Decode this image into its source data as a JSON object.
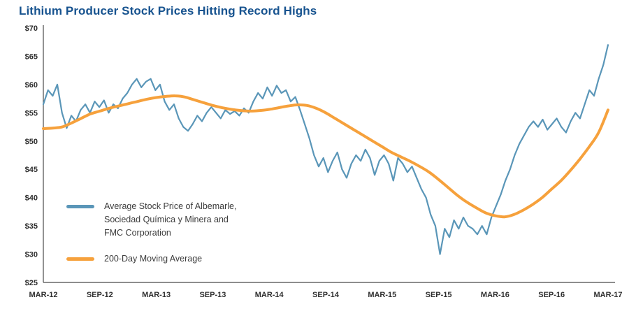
{
  "title": "Lithium Producer Stock Prices Hitting Record Highs",
  "colors": {
    "title_blue": "#17538f",
    "stock_line_blue": "#5a96b8",
    "moving_average_orange": "#f6a13c",
    "axis_text": "#2e2e2e"
  },
  "chart_data": {
    "type": "line",
    "title": "Lithium Producer Stock Prices Hitting Record Highs",
    "xlabel": "",
    "ylabel": "",
    "ylim": [
      25,
      70
    ],
    "y_tick_step": 5,
    "grid": false,
    "legend_position": "inside-bottom-left",
    "x_tick_labels": [
      "MAR-12",
      "SEP-12",
      "MAR-13",
      "SEP-13",
      "MAR-14",
      "SEP-14",
      "MAR-15",
      "SEP-15",
      "MAR-16",
      "SEP-16",
      "MAR-17"
    ],
    "y_tick_labels": [
      "$25",
      "$30",
      "$35",
      "$40",
      "$45",
      "$50",
      "$55",
      "$60",
      "$65",
      "$70"
    ],
    "x_range_note": "evenly spaced from MAR-2012 to MAR-2017",
    "series": [
      {
        "name": "Average Stock Price of Albemarle, Sociedad Química y Minera and FMC Corporation",
        "color": "#5a96b8",
        "stroke_width": 2.2,
        "sampling": "semi-monthly",
        "smooth": false,
        "values": [
          56.5,
          59,
          58,
          60,
          55,
          52.3,
          54.5,
          53.5,
          55.5,
          56.5,
          55,
          57,
          56,
          57.2,
          55,
          56.5,
          55.8,
          57.5,
          58.5,
          60,
          61,
          59.5,
          60.5,
          61,
          59,
          60,
          57,
          55.5,
          56.5,
          54,
          52.5,
          51.8,
          53,
          54.5,
          53.5,
          55,
          56,
          55,
          54,
          55.5,
          54.8,
          55.3,
          54.5,
          55.8,
          55,
          57,
          58.5,
          57.5,
          59.5,
          58,
          59.8,
          58.5,
          59,
          57,
          57.8,
          55.5,
          53,
          50.5,
          47.5,
          45.5,
          47,
          44.5,
          46.5,
          48,
          45,
          43.5,
          46,
          47.5,
          46.5,
          48.5,
          47,
          44,
          46.5,
          47.5,
          46,
          43,
          47,
          46,
          44.5,
          45.5,
          43.5,
          41.5,
          40,
          37,
          35,
          30,
          34.5,
          33,
          36,
          34.5,
          36.5,
          35,
          34.5,
          33.5,
          35,
          33.5,
          36.5,
          38.5,
          40.5,
          43,
          45,
          47.5,
          49.5,
          51,
          52.5,
          53.5,
          52.5,
          53.8,
          52,
          53,
          54,
          52.5,
          51.5,
          53.5,
          55,
          54,
          56.5,
          59,
          58,
          61,
          63.5,
          67
        ]
      },
      {
        "name": "200-Day Moving Average",
        "color": "#f6a13c",
        "stroke_width": 4,
        "sampling": "monthly",
        "smooth": true,
        "values": [
          52.2,
          52.3,
          52.5,
          53.2,
          54,
          54.8,
          55.3,
          55.8,
          56.2,
          56.6,
          57,
          57.4,
          57.7,
          57.9,
          58,
          57.8,
          57.3,
          56.8,
          56.3,
          55.9,
          55.6,
          55.4,
          55.3,
          55.4,
          55.6,
          55.9,
          56.2,
          56.4,
          56.3,
          55.8,
          55,
          54,
          53,
          52,
          51,
          50,
          49,
          48,
          47.2,
          46.4,
          45.5,
          44.5,
          43.2,
          41.8,
          40.4,
          39.2,
          38.2,
          37.3,
          36.8,
          36.6,
          37,
          37.8,
          38.8,
          40,
          41.5,
          43,
          44.8,
          46.8,
          49,
          51.5,
          55.5
        ]
      }
    ],
    "legend": [
      {
        "lines": [
          "Average Stock Price of Albemarle,",
          "Sociedad Química y Minera and",
          "FMC Corporation"
        ]
      },
      {
        "lines": [
          "200-Day Moving Average"
        ]
      }
    ]
  }
}
